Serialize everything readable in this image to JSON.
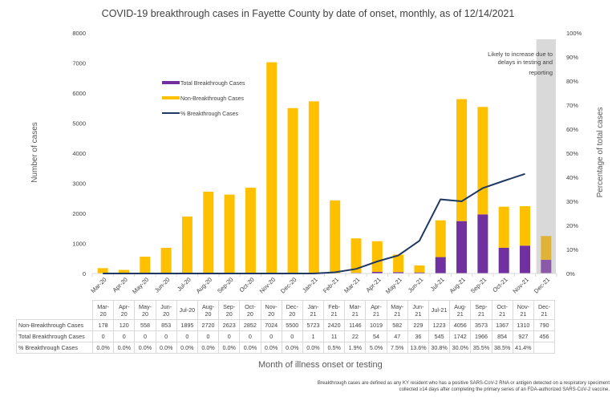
{
  "chart_data": {
    "type": "bar",
    "subtype": "stacked bar with line on secondary axis",
    "title": "COVID-19 breakthrough cases in Fayette County by date of onset, monthly, as of 12/14/2021",
    "xlabel": "Month of illness onset or testing",
    "ylabel": "Number of cases",
    "y2label": "Percentage of total cases",
    "ylim": [
      0,
      8000
    ],
    "y_ticks": [
      "0",
      "1000",
      "2000",
      "3000",
      "4000",
      "5000",
      "6000",
      "7000",
      "8000"
    ],
    "y2lim": [
      0,
      100
    ],
    "y2_ticks": [
      "0%",
      "10%",
      "20%",
      "30%",
      "40%",
      "50%",
      "60%",
      "70%",
      "80%",
      "90%",
      "100%"
    ],
    "categories": [
      "Mar-20",
      "Apr-20",
      "May-20",
      "Jun-20",
      "Jul-20",
      "Aug-20",
      "Sep-20",
      "Oct-20",
      "Nov-20",
      "Dec-20",
      "Jan-21",
      "Feb-21",
      "Mar-21",
      "Apr-21",
      "May-21",
      "Jun-21",
      "Jul-21",
      "Aug-21",
      "Sep-21",
      "Oct-21",
      "Nov-21",
      "Dec-21"
    ],
    "table_headers": [
      [
        "Mar-",
        "20"
      ],
      [
        "Apr-",
        "20"
      ],
      [
        "May-",
        "20"
      ],
      [
        "Jun-",
        "20"
      ],
      [
        "Jul-20"
      ],
      [
        "Aug-",
        "20"
      ],
      [
        "Sep-",
        "20"
      ],
      [
        "Oct-",
        "20"
      ],
      [
        "Nov-",
        "20"
      ],
      [
        "Dec-",
        "20"
      ],
      [
        "Jan-",
        "21"
      ],
      [
        "Feb-",
        "21"
      ],
      [
        "Mar-",
        "21"
      ],
      [
        "Apr-",
        "21"
      ],
      [
        "May-",
        "21"
      ],
      [
        "Jun-",
        "21"
      ],
      [
        "Jul-21"
      ],
      [
        "Aug-",
        "21"
      ],
      [
        "Sep-",
        "21"
      ],
      [
        "Oct-",
        "21"
      ],
      [
        "Nov-",
        "21"
      ],
      [
        "Dec-",
        "21"
      ]
    ],
    "series": [
      {
        "name": "Total Breakthrough Cases",
        "type": "bar",
        "axis": "left",
        "color": "#7030a0",
        "values": [
          0,
          0,
          0,
          0,
          0,
          0,
          0,
          0,
          0,
          0,
          1,
          11,
          22,
          54,
          47,
          36,
          545,
          1742,
          1966,
          854,
          927,
          456
        ]
      },
      {
        "name": "Non-Breakthrough Cases",
        "type": "bar",
        "axis": "left",
        "color": "#ffc000",
        "values": [
          178,
          120,
          558,
          853,
          1895,
          2720,
          2623,
          2852,
          7024,
          5500,
          5723,
          2420,
          1146,
          1019,
          582,
          229,
          1223,
          4056,
          3573,
          1367,
          1310,
          790
        ]
      },
      {
        "name": "% Breakthrough Cases",
        "type": "line",
        "axis": "right",
        "color": "#1f3864",
        "values": [
          0.0,
          0.0,
          0.0,
          0.0,
          0.0,
          0.0,
          0.0,
          0.0,
          0.0,
          0.0,
          0.0,
          0.5,
          1.9,
          5.0,
          7.5,
          13.6,
          30.8,
          30.0,
          35.5,
          38.5,
          41.4,
          null
        ],
        "labels": [
          "0.0%",
          "0.0%",
          "0.0%",
          "0.0%",
          "0.0%",
          "0.0%",
          "0.0%",
          "0.0%",
          "0.0%",
          "0.0%",
          "0.0%",
          "0.5%",
          "1.9%",
          "5.0%",
          "7.5%",
          "13.6%",
          "30.8%",
          "30.0%",
          "35.5%",
          "38.5%",
          "41.4%",
          ""
        ]
      }
    ],
    "legend_order": [
      "Total Breakthrough Cases",
      "Non-Breakthrough Cases",
      "% Breakthrough Cases"
    ],
    "legend_position": "upper-left inside plot",
    "shaded_category": "Dec-21",
    "shaded_color": "#d9d9d9",
    "annotation": [
      "Likely to increase due to",
      "delays in testing and",
      "reporting"
    ],
    "grid": false
  },
  "footnote": [
    "Breakthrough cases are defined as any KY resident who has a positive SARS-CoV-2 RNA or antigen detected on a respiratory speciment",
    "collected ≥14 days after completing the primary series of an FDA-authorized SARS-CoV-2 vaccine."
  ]
}
